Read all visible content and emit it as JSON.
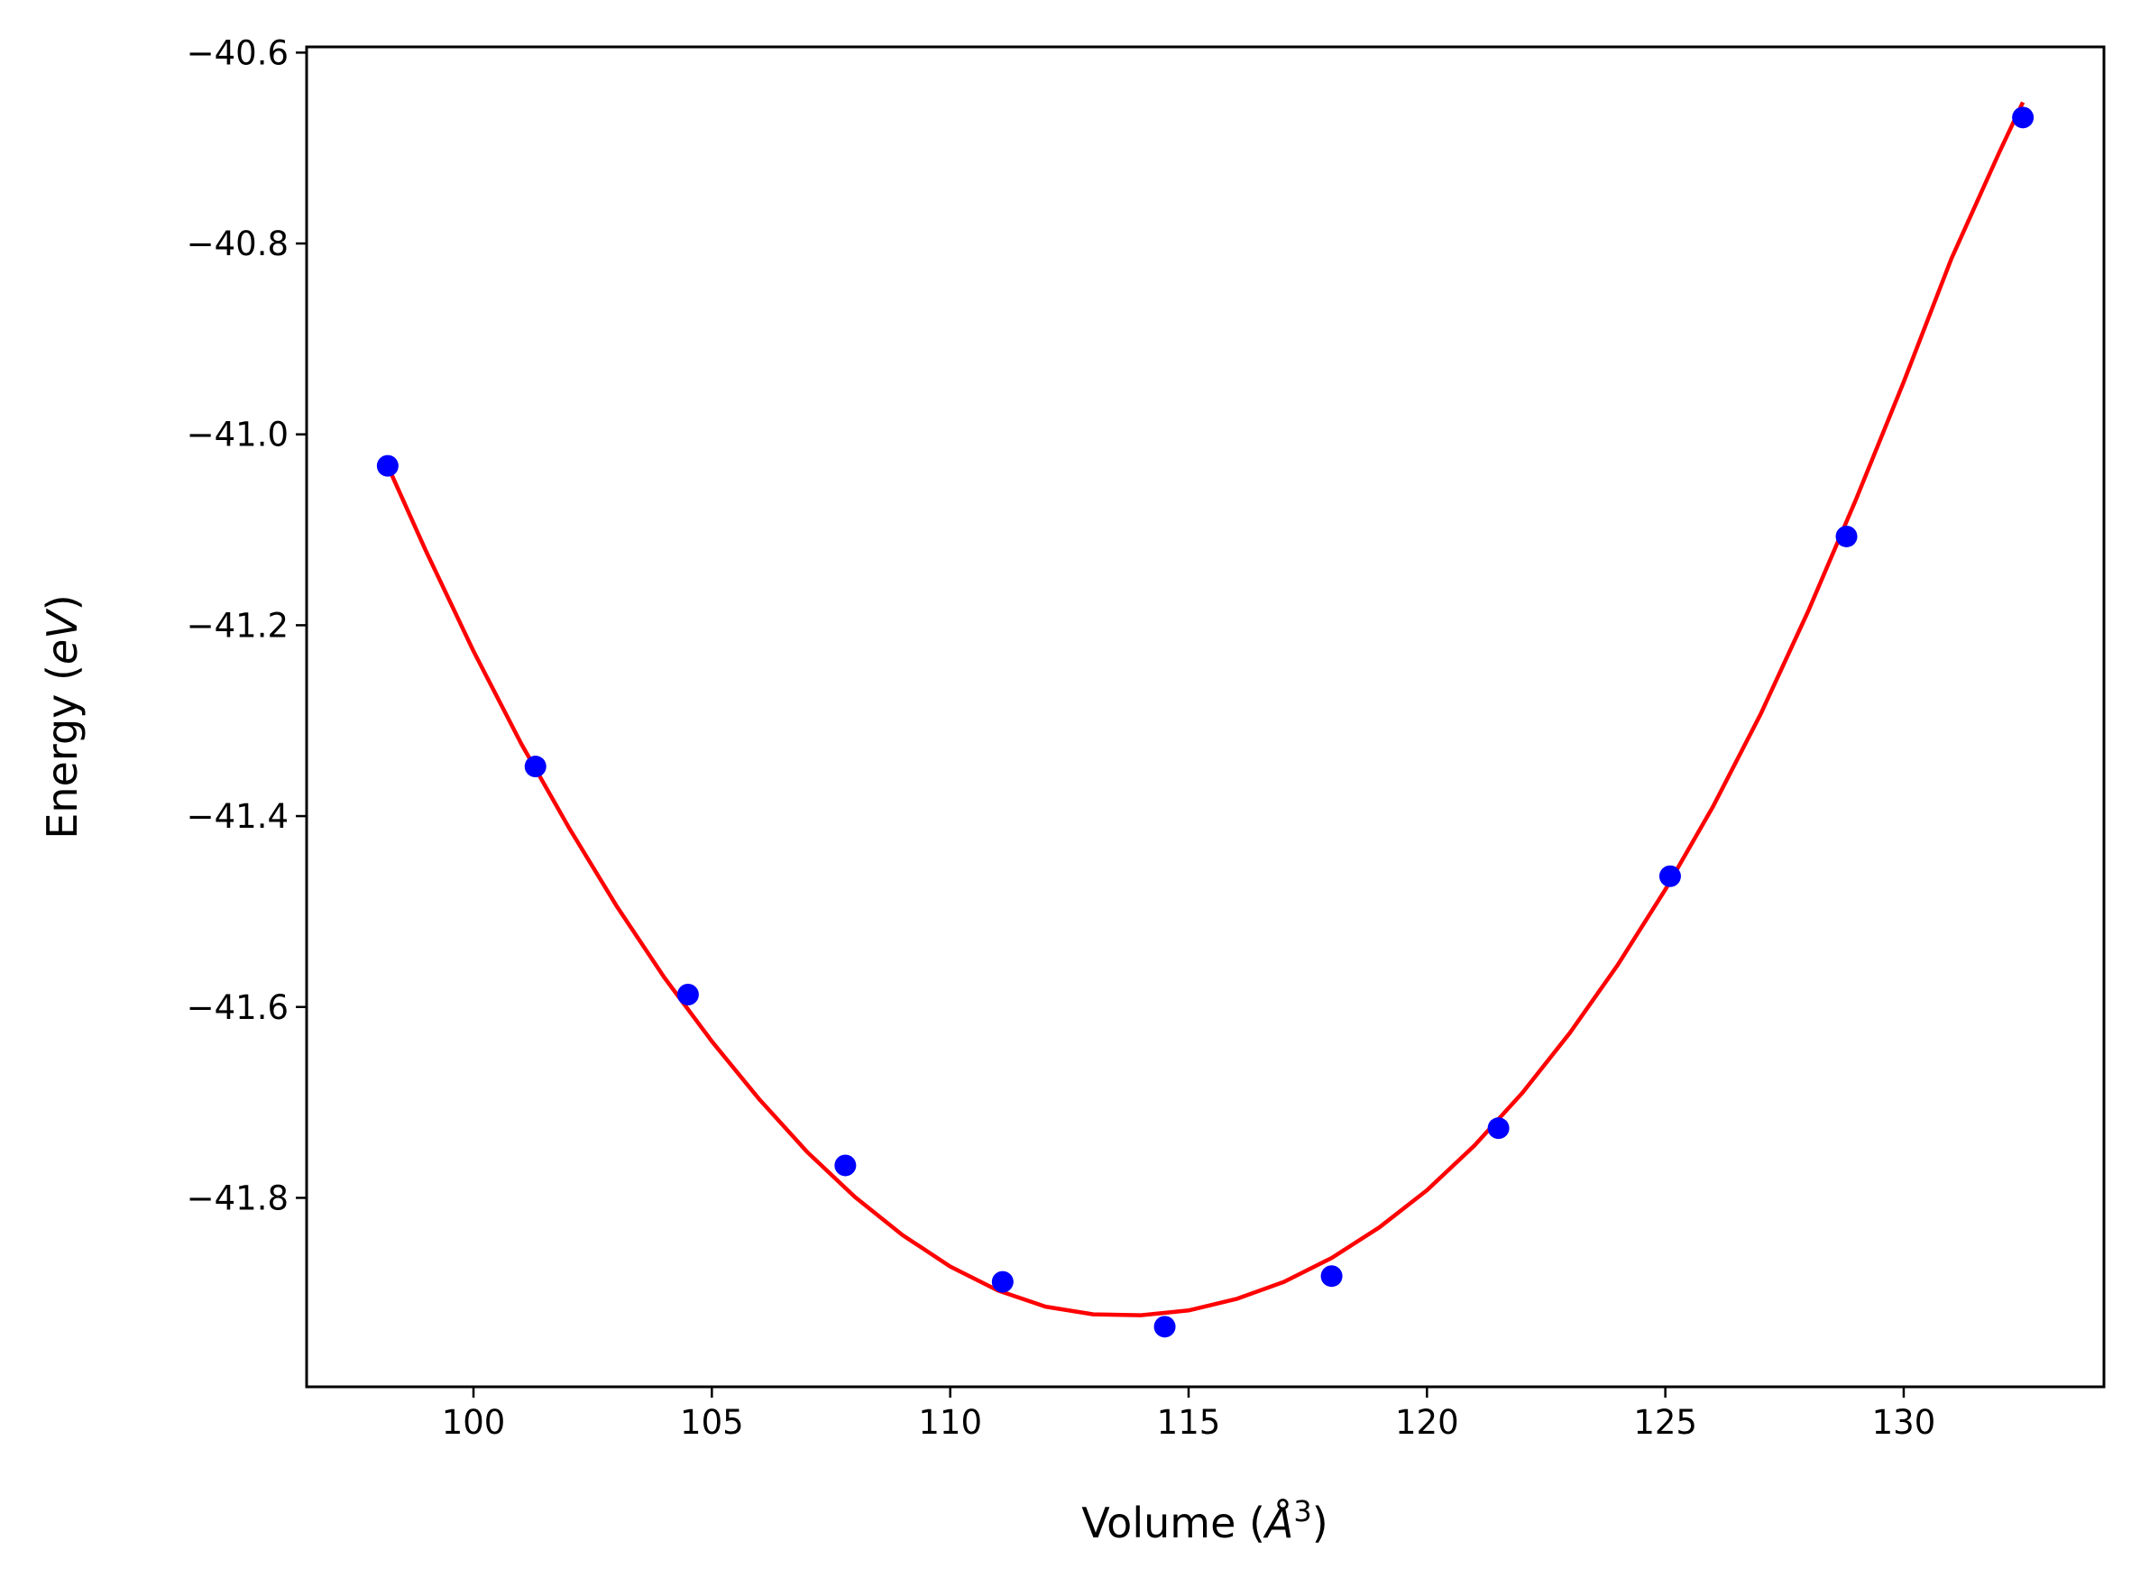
{
  "chart_data": {
    "type": "scatter",
    "xlabel": "Volume (",
    "xlabel_symbol": "Å",
    "xlabel_power": "3",
    "xlabel_close": ")",
    "ylabel": "Energy (",
    "ylabel_unit": "eV",
    "ylabel_close": ")",
    "xlim": [
      96.5,
      134.2
    ],
    "ylim": [
      -41.998,
      -40.594
    ],
    "xticks": [
      100,
      105,
      110,
      115,
      120,
      125,
      130
    ],
    "yticks": [
      -41.8,
      -41.6,
      -41.4,
      -41.2,
      -41.0,
      -40.8,
      -40.6
    ],
    "ytick_labels": [
      "−41.8",
      "−41.6",
      "−41.4",
      "−41.2",
      "−41.0",
      "−40.8",
      "−40.6"
    ],
    "grid": false,
    "legend": "none",
    "series": [
      {
        "kind": "points",
        "color": "#0000ff",
        "x": [
          98.2,
          101.3,
          104.5,
          107.8,
          111.1,
          114.5,
          118.0,
          121.5,
          125.1,
          128.8,
          132.5
        ],
        "y": [
          -41.033,
          -41.348,
          -41.587,
          -41.766,
          -41.888,
          -41.935,
          -41.882,
          -41.727,
          -41.463,
          -41.107,
          -40.668
        ]
      },
      {
        "kind": "fit-curve",
        "color": "#ff0000",
        "x": [
          98.2,
          99.0,
          100.0,
          101.0,
          102.0,
          103.0,
          104.0,
          105.0,
          106.0,
          107.0,
          108.0,
          109.0,
          110.0,
          111.0,
          112.0,
          113.0,
          114.0,
          115.0,
          116.0,
          117.0,
          118.0,
          119.0,
          120.0,
          121.0,
          122.0,
          123.0,
          124.0,
          125.0,
          126.0,
          127.0,
          128.0,
          129.0,
          130.0,
          131.0,
          132.0,
          132.5
        ],
        "y": [
          -41.033,
          -41.122,
          -41.227,
          -41.324,
          -41.412,
          -41.494,
          -41.569,
          -41.636,
          -41.697,
          -41.752,
          -41.799,
          -41.839,
          -41.872,
          -41.897,
          -41.914,
          -41.922,
          -41.923,
          -41.918,
          -41.906,
          -41.888,
          -41.863,
          -41.831,
          -41.792,
          -41.745,
          -41.69,
          -41.627,
          -41.556,
          -41.477,
          -41.39,
          -41.293,
          -41.185,
          -41.068,
          -40.945,
          -40.816,
          -40.705,
          -40.652
        ]
      }
    ]
  }
}
